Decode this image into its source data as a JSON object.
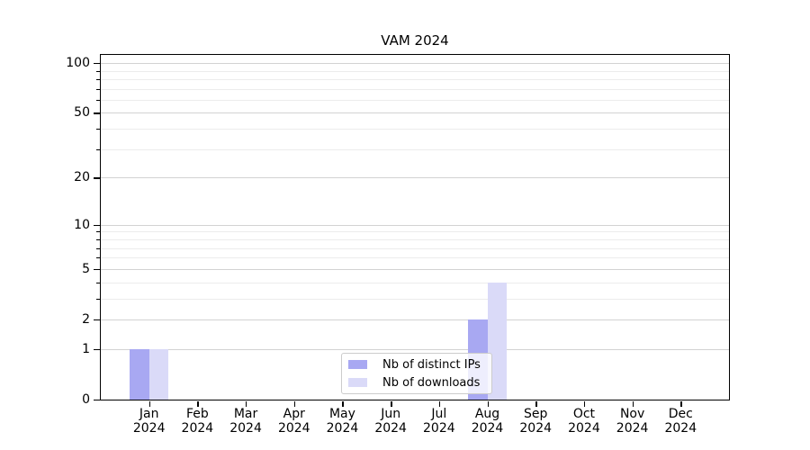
{
  "title": "VAM 2024",
  "chart_data": {
    "type": "bar",
    "title": "VAM 2024",
    "categories": [
      "Jan 2024",
      "Feb 2024",
      "Mar 2024",
      "Apr 2024",
      "May 2024",
      "Jun 2024",
      "Jul 2024",
      "Aug 2024",
      "Sep 2024",
      "Oct 2024",
      "Nov 2024",
      "Dec 2024"
    ],
    "series": [
      {
        "name": "Nb of distinct IPs",
        "color": "#a8a8f2",
        "values": [
          1,
          0,
          0,
          0,
          0,
          0,
          0,
          2,
          0,
          0,
          0,
          0
        ]
      },
      {
        "name": "Nb of downloads",
        "color": "#dadaf8",
        "values": [
          1,
          0,
          0,
          0,
          0,
          0,
          0,
          4,
          0,
          0,
          0,
          0
        ]
      }
    ],
    "xlabel": "",
    "ylabel": "",
    "y_scale": "log1p",
    "y_ticks": [
      0,
      1,
      2,
      5,
      10,
      20,
      50,
      100
    ],
    "y_minor_gridlines": [
      3,
      4,
      6,
      7,
      8,
      9,
      30,
      40,
      60,
      70,
      80,
      90
    ],
    "ylim": [
      0,
      112
    ],
    "grid": true,
    "legend_position": "inside-lower-center"
  },
  "legend": {
    "entries": [
      "Nb of distinct IPs",
      "Nb of downloads"
    ]
  },
  "colors": {
    "grid_major": "#d2d2d2",
    "grid_minor": "#ececec",
    "spine": "#000000",
    "background": "#ffffff"
  }
}
